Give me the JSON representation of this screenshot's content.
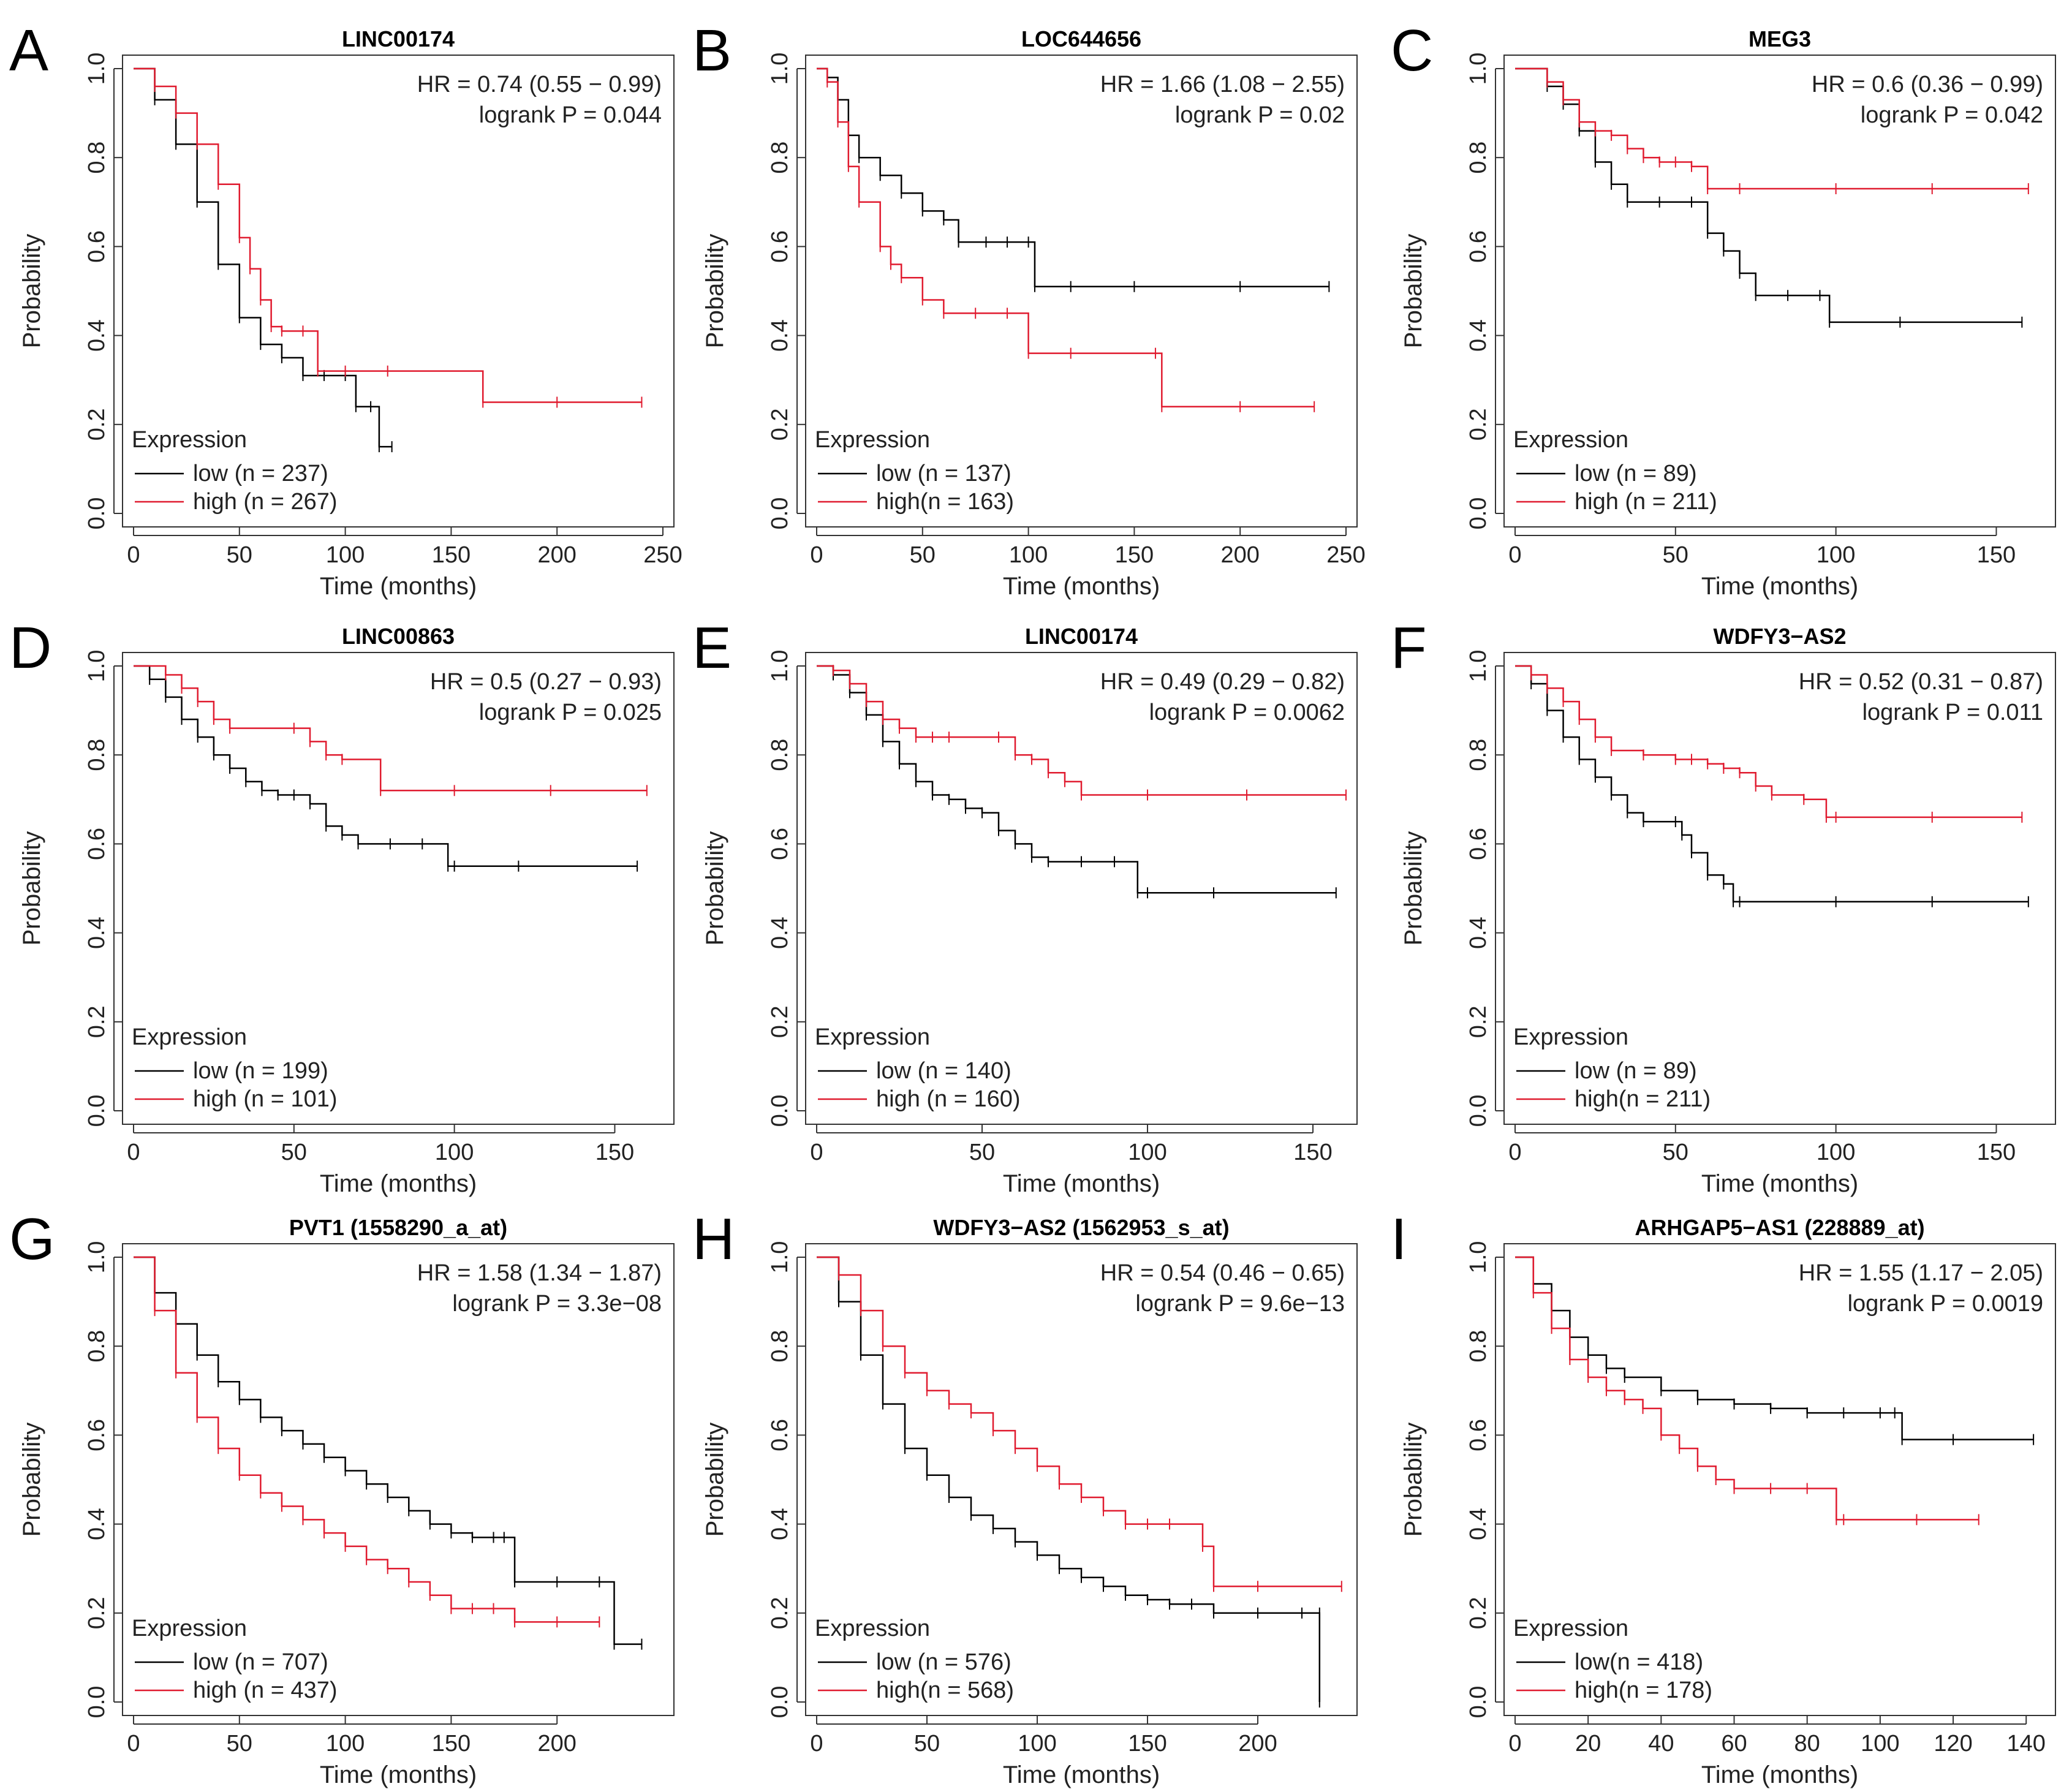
{
  "figure": {
    "colors": {
      "low": "#000000",
      "high": "#e01b2f",
      "frame": "#333333"
    }
  },
  "chart_data": [
    {
      "panel": "A",
      "type": "line",
      "title": "LINC00174",
      "xlabel": "Time (months)",
      "ylabel": "Probability",
      "xlim": [
        0,
        250
      ],
      "ylim": [
        0,
        1
      ],
      "xticks": [
        0,
        50,
        100,
        150,
        200,
        250
      ],
      "yticks": [
        "0.0",
        "0.2",
        "0.4",
        "0.6",
        "0.8",
        "1.0"
      ],
      "hr_text": "HR = 0.74 (0.55 − 0.99)",
      "p_text": "logrank P = 0.044",
      "legend_title": "Expression",
      "series": [
        {
          "group": "low",
          "label": "low   (n = 237)",
          "x": [
            0,
            10,
            20,
            30,
            40,
            50,
            60,
            70,
            80,
            90,
            100,
            105,
            112,
            116,
            122
          ],
          "y": [
            1.0,
            0.93,
            0.83,
            0.7,
            0.56,
            0.44,
            0.38,
            0.35,
            0.31,
            0.31,
            0.31,
            0.24,
            0.24,
            0.15,
            0.15
          ]
        },
        {
          "group": "high",
          "label": "high (n = 267)",
          "x": [
            0,
            10,
            20,
            30,
            40,
            50,
            55,
            60,
            65,
            70,
            80,
            87,
            100,
            120,
            165,
            200,
            240
          ],
          "y": [
            1.0,
            0.96,
            0.9,
            0.83,
            0.74,
            0.62,
            0.55,
            0.48,
            0.42,
            0.41,
            0.41,
            0.32,
            0.32,
            0.32,
            0.25,
            0.25,
            0.25
          ]
        }
      ]
    },
    {
      "panel": "B",
      "type": "line",
      "title": "LOC644656",
      "xlabel": "Time (months)",
      "ylabel": "Probability",
      "xlim": [
        0,
        250
      ],
      "ylim": [
        0,
        1
      ],
      "xticks": [
        0,
        50,
        100,
        150,
        200,
        250
      ],
      "yticks": [
        "0.0",
        "0.2",
        "0.4",
        "0.6",
        "0.8",
        "1.0"
      ],
      "hr_text": "HR = 1.66 (1.08 − 2.55)",
      "p_text": "logrank P = 0.02",
      "legend_title": "Expression",
      "series": [
        {
          "group": "low",
          "label": "low (n = 137)",
          "x": [
            0,
            5,
            10,
            15,
            20,
            30,
            40,
            50,
            60,
            67,
            80,
            90,
            100,
            103,
            120,
            150,
            200,
            242
          ],
          "y": [
            1.0,
            0.98,
            0.93,
            0.85,
            0.8,
            0.76,
            0.72,
            0.68,
            0.66,
            0.61,
            0.61,
            0.61,
            0.61,
            0.51,
            0.51,
            0.51,
            0.51,
            0.51
          ]
        },
        {
          "group": "high",
          "label": "high(n = 163)",
          "x": [
            0,
            5,
            10,
            15,
            20,
            30,
            35,
            40,
            50,
            60,
            75,
            90,
            100,
            120,
            160,
            163,
            200,
            235
          ],
          "y": [
            1.0,
            0.97,
            0.88,
            0.78,
            0.7,
            0.6,
            0.56,
            0.53,
            0.48,
            0.45,
            0.45,
            0.45,
            0.36,
            0.36,
            0.36,
            0.24,
            0.24,
            0.24
          ]
        }
      ]
    },
    {
      "panel": "C",
      "type": "line",
      "title": "MEG3",
      "xlabel": "Time (months)",
      "ylabel": "Probability",
      "xlim": [
        0,
        165
      ],
      "ylim": [
        0,
        1
      ],
      "xticks": [
        0,
        50,
        100,
        150
      ],
      "yticks": [
        "0.0",
        "0.2",
        "0.4",
        "0.6",
        "0.8",
        "1.0"
      ],
      "hr_text": "HR = 0.6 (0.36 − 0.99)",
      "p_text": "logrank P = 0.042",
      "legend_title": "Expression",
      "series": [
        {
          "group": "low",
          "label": "low (n = 89)",
          "x": [
            0,
            10,
            15,
            20,
            25,
            30,
            35,
            45,
            55,
            60,
            65,
            70,
            75,
            85,
            95,
            98,
            120,
            158
          ],
          "y": [
            1.0,
            0.96,
            0.92,
            0.86,
            0.79,
            0.74,
            0.7,
            0.7,
            0.7,
            0.63,
            0.59,
            0.54,
            0.49,
            0.49,
            0.49,
            0.43,
            0.43,
            0.43
          ]
        },
        {
          "group": "high",
          "label": "high (n = 211)",
          "x": [
            0,
            10,
            15,
            20,
            25,
            30,
            35,
            40,
            45,
            50,
            55,
            60,
            70,
            100,
            130,
            160
          ],
          "y": [
            1.0,
            0.97,
            0.93,
            0.88,
            0.86,
            0.85,
            0.82,
            0.8,
            0.79,
            0.79,
            0.78,
            0.73,
            0.73,
            0.73,
            0.73,
            0.73
          ]
        }
      ]
    },
    {
      "panel": "D",
      "type": "line",
      "title": "LINC00863",
      "xlabel": "Time (months)",
      "ylabel": "Probability",
      "xlim": [
        0,
        165
      ],
      "ylim": [
        0,
        1
      ],
      "xticks": [
        0,
        50,
        100,
        150
      ],
      "yticks": [
        "0.0",
        "0.2",
        "0.4",
        "0.6",
        "0.8",
        "1.0"
      ],
      "hr_text": "HR = 0.5 (0.27 − 0.93)",
      "p_text": "logrank P = 0.025",
      "legend_title": "Expression",
      "series": [
        {
          "group": "low",
          "label": "low (n = 199)",
          "x": [
            0,
            5,
            10,
            15,
            20,
            25,
            30,
            35,
            40,
            45,
            50,
            55,
            60,
            65,
            70,
            80,
            90,
            98,
            100,
            120,
            157
          ],
          "y": [
            1.0,
            0.97,
            0.93,
            0.88,
            0.84,
            0.8,
            0.77,
            0.74,
            0.72,
            0.71,
            0.71,
            0.69,
            0.64,
            0.62,
            0.6,
            0.6,
            0.6,
            0.55,
            0.55,
            0.55,
            0.55
          ]
        },
        {
          "group": "high",
          "label": "high (n = 101)",
          "x": [
            0,
            10,
            15,
            20,
            25,
            30,
            50,
            55,
            60,
            65,
            77,
            100,
            130,
            160
          ],
          "y": [
            1.0,
            0.98,
            0.95,
            0.92,
            0.88,
            0.86,
            0.86,
            0.83,
            0.8,
            0.79,
            0.72,
            0.72,
            0.72,
            0.72
          ]
        }
      ]
    },
    {
      "panel": "E",
      "type": "line",
      "title": "LINC00174",
      "xlabel": "Time (months)",
      "ylabel": "Probability",
      "xlim": [
        0,
        160
      ],
      "ylim": [
        0,
        1
      ],
      "xticks": [
        0,
        50,
        100,
        150
      ],
      "yticks": [
        "0.0",
        "0.2",
        "0.4",
        "0.6",
        "0.8",
        "1.0"
      ],
      "hr_text": "HR = 0.49 (0.29 − 0.82)",
      "p_text": "logrank P = 0.0062",
      "legend_title": "Expression",
      "series": [
        {
          "group": "low",
          "label": "low (n = 140)",
          "x": [
            0,
            5,
            10,
            15,
            20,
            25,
            30,
            35,
            40,
            45,
            50,
            55,
            60,
            65,
            70,
            80,
            90,
            97,
            100,
            120,
            157
          ],
          "y": [
            1.0,
            0.98,
            0.94,
            0.89,
            0.83,
            0.78,
            0.74,
            0.71,
            0.7,
            0.68,
            0.67,
            0.63,
            0.6,
            0.57,
            0.56,
            0.56,
            0.56,
            0.49,
            0.49,
            0.49,
            0.49
          ]
        },
        {
          "group": "high",
          "label": "high (n = 160)",
          "x": [
            0,
            5,
            10,
            15,
            20,
            25,
            30,
            35,
            40,
            55,
            60,
            65,
            70,
            75,
            80,
            100,
            130,
            160
          ],
          "y": [
            1.0,
            0.99,
            0.96,
            0.92,
            0.88,
            0.86,
            0.84,
            0.84,
            0.84,
            0.84,
            0.8,
            0.79,
            0.76,
            0.74,
            0.71,
            0.71,
            0.71,
            0.71
          ]
        }
      ]
    },
    {
      "panel": "F",
      "type": "line",
      "title": "WDFY3−AS2",
      "xlabel": "Time (months)",
      "ylabel": "Probability",
      "xlim": [
        0,
        165
      ],
      "ylim": [
        0,
        1
      ],
      "xticks": [
        0,
        50,
        100,
        150
      ],
      "yticks": [
        "0.0",
        "0.2",
        "0.4",
        "0.6",
        "0.8",
        "1.0"
      ],
      "hr_text": "HR = 0.52 (0.31 − 0.87)",
      "p_text": "logrank P = 0.011",
      "legend_title": "Expression",
      "series": [
        {
          "group": "low",
          "label": "low (n = 89)",
          "x": [
            0,
            5,
            10,
            15,
            20,
            25,
            30,
            35,
            40,
            50,
            52,
            55,
            60,
            65,
            68,
            70,
            100,
            130,
            160
          ],
          "y": [
            1.0,
            0.96,
            0.9,
            0.84,
            0.79,
            0.75,
            0.71,
            0.67,
            0.65,
            0.65,
            0.62,
            0.58,
            0.53,
            0.51,
            0.47,
            0.47,
            0.47,
            0.47,
            0.47
          ]
        },
        {
          "group": "high",
          "label": "high(n = 211)",
          "x": [
            0,
            5,
            10,
            15,
            20,
            25,
            30,
            40,
            50,
            55,
            60,
            65,
            70,
            75,
            80,
            90,
            97,
            100,
            130,
            158
          ],
          "y": [
            1.0,
            0.98,
            0.95,
            0.92,
            0.88,
            0.84,
            0.81,
            0.8,
            0.79,
            0.79,
            0.78,
            0.77,
            0.76,
            0.73,
            0.71,
            0.7,
            0.66,
            0.66,
            0.66,
            0.66
          ]
        }
      ]
    },
    {
      "panel": "G",
      "type": "line",
      "title": "PVT1 (1558290_a_at)",
      "xlabel": "Time (months)",
      "ylabel": "Probability",
      "xlim": [
        0,
        250
      ],
      "ylim": [
        0,
        1
      ],
      "xticks": [
        0,
        50,
        100,
        150,
        200
      ],
      "yticks": [
        "0.0",
        "0.2",
        "0.4",
        "0.6",
        "0.8",
        "1.0"
      ],
      "hr_text": "HR = 1.58 (1.34 − 1.87)",
      "p_text": "logrank P = 3.3e−08",
      "legend_title": "Expression",
      "series": [
        {
          "group": "low",
          "label": "low (n = 707)",
          "x": [
            0,
            10,
            20,
            30,
            40,
            50,
            60,
            70,
            80,
            90,
            100,
            110,
            120,
            130,
            140,
            150,
            160,
            170,
            175,
            180,
            200,
            220,
            227,
            240
          ],
          "y": [
            1.0,
            0.92,
            0.85,
            0.78,
            0.72,
            0.68,
            0.64,
            0.61,
            0.58,
            0.55,
            0.52,
            0.49,
            0.46,
            0.43,
            0.4,
            0.38,
            0.37,
            0.37,
            0.37,
            0.27,
            0.27,
            0.27,
            0.13,
            0.13
          ]
        },
        {
          "group": "high",
          "label": "high (n = 437)",
          "x": [
            0,
            10,
            20,
            30,
            40,
            50,
            60,
            70,
            80,
            90,
            100,
            110,
            120,
            130,
            140,
            150,
            160,
            170,
            180,
            200,
            220
          ],
          "y": [
            1.0,
            0.88,
            0.74,
            0.64,
            0.57,
            0.51,
            0.47,
            0.44,
            0.41,
            0.38,
            0.35,
            0.32,
            0.3,
            0.27,
            0.24,
            0.21,
            0.21,
            0.21,
            0.18,
            0.18,
            0.18
          ]
        }
      ]
    },
    {
      "panel": "H",
      "type": "line",
      "title": "WDFY3−AS2 (1562953_s_at)",
      "xlabel": "Time (months)",
      "ylabel": "Probability",
      "xlim": [
        0,
        240
      ],
      "ylim": [
        0,
        1
      ],
      "xticks": [
        0,
        50,
        100,
        150,
        200
      ],
      "yticks": [
        "0.0",
        "0.2",
        "0.4",
        "0.6",
        "0.8",
        "1.0"
      ],
      "hr_text": "HR = 0.54 (0.46 − 0.65)",
      "p_text": "logrank P = 9.6e−13",
      "legend_title": "Expression",
      "series": [
        {
          "group": "low",
          "label": "low (n = 576)",
          "x": [
            0,
            10,
            20,
            30,
            40,
            50,
            60,
            70,
            80,
            90,
            100,
            110,
            120,
            130,
            140,
            150,
            160,
            170,
            180,
            200,
            220,
            228,
            228
          ],
          "y": [
            1.0,
            0.9,
            0.78,
            0.67,
            0.57,
            0.51,
            0.46,
            0.42,
            0.39,
            0.36,
            0.33,
            0.3,
            0.28,
            0.26,
            0.24,
            0.23,
            0.22,
            0.22,
            0.2,
            0.2,
            0.2,
            0.2,
            0.0
          ]
        },
        {
          "group": "high",
          "label": "high(n = 568)",
          "x": [
            0,
            10,
            20,
            30,
            40,
            50,
            60,
            70,
            80,
            90,
            100,
            110,
            120,
            130,
            140,
            150,
            160,
            175,
            180,
            200,
            238
          ],
          "y": [
            1.0,
            0.96,
            0.88,
            0.8,
            0.74,
            0.7,
            0.67,
            0.65,
            0.61,
            0.57,
            0.53,
            0.49,
            0.46,
            0.43,
            0.4,
            0.4,
            0.4,
            0.35,
            0.26,
            0.26,
            0.26
          ]
        }
      ]
    },
    {
      "panel": "I",
      "type": "line",
      "title": "ARHGAP5−AS1 (228889_at)",
      "xlabel": "Time (months)",
      "ylabel": "Probability",
      "xlim": [
        0,
        145
      ],
      "ylim": [
        0,
        1
      ],
      "xticks": [
        0,
        20,
        40,
        60,
        80,
        100,
        120,
        140
      ],
      "yticks": [
        "0.0",
        "0.2",
        "0.4",
        "0.6",
        "0.8",
        "1.0"
      ],
      "hr_text": "HR = 1.55 (1.17 − 2.05)",
      "p_text": "logrank P = 0.0019",
      "legend_title": "Expression",
      "series": [
        {
          "group": "low",
          "label": "low(n = 418)",
          "x": [
            0,
            5,
            10,
            15,
            20,
            25,
            30,
            40,
            50,
            60,
            70,
            80,
            90,
            100,
            104,
            106,
            120,
            142
          ],
          "y": [
            1.0,
            0.94,
            0.88,
            0.82,
            0.78,
            0.75,
            0.73,
            0.7,
            0.68,
            0.67,
            0.66,
            0.65,
            0.65,
            0.65,
            0.65,
            0.59,
            0.59,
            0.59
          ]
        },
        {
          "group": "high",
          "label": "high(n = 178)",
          "x": [
            0,
            5,
            10,
            15,
            20,
            25,
            30,
            35,
            40,
            45,
            50,
            55,
            60,
            70,
            80,
            88,
            90,
            110,
            127
          ],
          "y": [
            1.0,
            0.92,
            0.84,
            0.77,
            0.73,
            0.7,
            0.68,
            0.66,
            0.6,
            0.57,
            0.53,
            0.5,
            0.48,
            0.48,
            0.48,
            0.41,
            0.41,
            0.41,
            0.41
          ]
        }
      ]
    }
  ]
}
